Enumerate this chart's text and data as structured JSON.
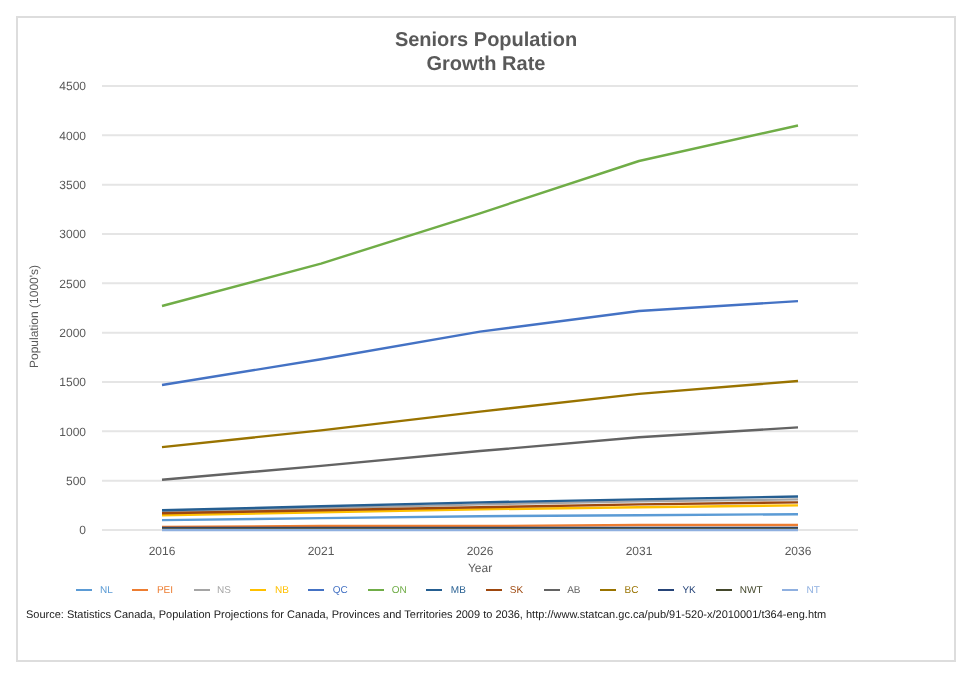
{
  "chart_data": {
    "type": "line",
    "title": "Seniors Population\nGrowth Rate",
    "xlabel": "Year",
    "ylabel": "Population (1000's)",
    "categories": [
      "2016",
      "2021",
      "2026",
      "2031",
      "2036"
    ],
    "series": [
      {
        "name": "NL",
        "color": "#5b9bd5",
        "values": [
          100,
          120,
          140,
          150,
          160
        ]
      },
      {
        "name": "PEI",
        "color": "#ed7d31",
        "values": [
          30,
          40,
          40,
          50,
          50
        ]
      },
      {
        "name": "NS",
        "color": "#a5a5a5",
        "values": [
          180,
          220,
          260,
          290,
          310
        ]
      },
      {
        "name": "NB",
        "color": "#ffc000",
        "values": [
          150,
          180,
          210,
          230,
          250
        ]
      },
      {
        "name": "QC",
        "color": "#4472c4",
        "values": [
          1470,
          1730,
          2010,
          2220,
          2320
        ]
      },
      {
        "name": "ON",
        "color": "#70ad47",
        "values": [
          2270,
          2700,
          3210,
          3740,
          4100
        ]
      },
      {
        "name": "MB",
        "color": "#255e91",
        "values": [
          200,
          240,
          280,
          310,
          340
        ]
      },
      {
        "name": "SK",
        "color": "#9e480e",
        "values": [
          170,
          200,
          230,
          260,
          280
        ]
      },
      {
        "name": "AB",
        "color": "#636363",
        "values": [
          510,
          650,
          800,
          940,
          1040
        ]
      },
      {
        "name": "BC",
        "color": "#997300",
        "values": [
          840,
          1010,
          1200,
          1380,
          1510
        ]
      },
      {
        "name": "YK",
        "color": "#264478",
        "values": [
          20,
          20,
          20,
          20,
          20
        ]
      },
      {
        "name": "NWT",
        "color": "#43472b",
        "values": [
          10,
          10,
          10,
          10,
          10
        ]
      },
      {
        "name": "NT",
        "color": "#8fb0e0",
        "values": [
          0,
          0,
          0,
          0,
          0
        ]
      }
    ],
    "ylim": [
      0,
      4500
    ],
    "yticks": [
      0,
      500,
      1000,
      1500,
      2000,
      2500,
      3000,
      3500,
      4000,
      4500
    ],
    "grid": "y",
    "legend": "bottom",
    "marker": "none",
    "line_style": "solid",
    "annotations": [
      "Source:  Statistics Canada, Population Projections for Canada, Provinces and Territories 2009 to 2036, http://www.statcan.gc.ca/pub/91-520-x/2010001/t364-eng.htm"
    ]
  }
}
